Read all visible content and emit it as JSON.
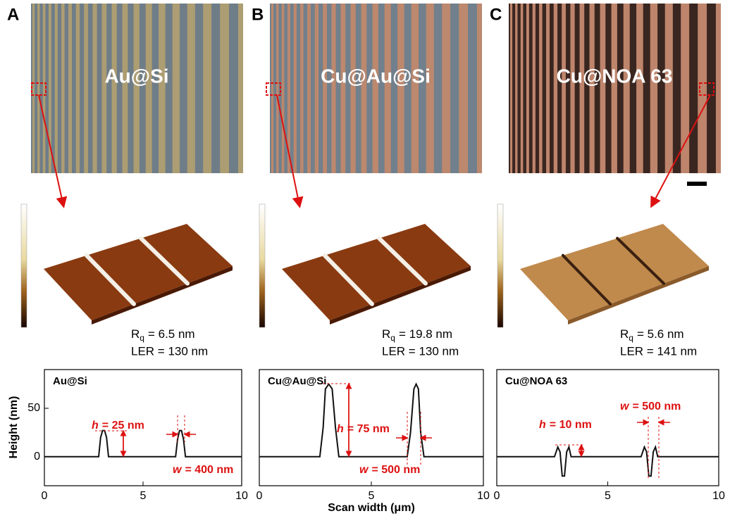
{
  "panels": [
    {
      "letter": "A",
      "image_label": "Au@Si",
      "roughness": {
        "symbol": "R",
        "subscript": "q",
        "text": "= 6.5 nm"
      },
      "ler": "LER = 130 nm"
    },
    {
      "letter": "B",
      "image_label": "Cu@Au@Si",
      "roughness": {
        "symbol": "R",
        "subscript": "q",
        "text": "= 19.8 nm"
      },
      "ler": "LER = 130 nm"
    },
    {
      "letter": "C",
      "image_label": "Cu@NOA 63",
      "roughness": {
        "symbol": "R",
        "subscript": "q",
        "text": "= 5.6 nm"
      },
      "ler": "LER = 141 nm"
    }
  ],
  "chart_data": [
    {
      "type": "line",
      "title": "Au@Si",
      "ylabel": "Height (nm)",
      "xlim": [
        0,
        10
      ],
      "xticks": [
        0,
        5,
        10
      ],
      "ylim": [
        -30,
        90
      ],
      "yticks": [
        0,
        50
      ],
      "x": [
        0,
        1,
        2,
        2.75,
        2.85,
        2.95,
        3.05,
        3.15,
        3.25,
        4,
        5,
        6,
        6.65,
        6.75,
        6.85,
        6.95,
        7.05,
        7.15,
        8,
        9,
        10
      ],
      "series": [
        {
          "color": "#111111",
          "values": [
            0,
            0,
            0,
            0,
            20,
            27,
            27,
            20,
            0,
            0,
            0,
            0,
            0,
            18,
            27,
            27,
            18,
            0,
            0,
            0,
            0
          ]
        }
      ],
      "annotations": [
        {
          "symbol": "h",
          "text": "= 25 nm"
        },
        {
          "symbol": "w",
          "text": "= 400 nm"
        }
      ]
    },
    {
      "type": "line",
      "title": "Cu@Au@Si",
      "xlabel": "Scan width (μm)",
      "xlim": [
        0,
        10
      ],
      "xticks": [
        0,
        5,
        10
      ],
      "ylim": [
        -30,
        90
      ],
      "x": [
        0,
        1,
        2,
        2.7,
        2.85,
        2.95,
        3.1,
        3.25,
        3.4,
        3.55,
        4,
        5,
        6,
        6.6,
        6.75,
        6.9,
        7.0,
        7.1,
        7.2,
        7.35,
        8,
        9,
        10
      ],
      "series": [
        {
          "color": "#111111",
          "values": [
            0,
            0,
            0,
            0,
            30,
            70,
            75,
            70,
            30,
            0,
            0,
            0,
            0,
            0,
            25,
            70,
            75,
            70,
            25,
            0,
            0,
            0,
            0
          ]
        }
      ],
      "annotations": [
        {
          "symbol": "h",
          "text": "= 75 nm"
        },
        {
          "symbol": "w",
          "text": "= 500 nm"
        }
      ]
    },
    {
      "type": "line",
      "title": "Cu@NOA 63",
      "xlim": [
        0,
        10
      ],
      "xticks": [
        0,
        5,
        10
      ],
      "ylim": [
        -30,
        90
      ],
      "x": [
        0,
        1,
        2,
        2.6,
        2.75,
        2.85,
        2.95,
        3.05,
        3.15,
        3.25,
        3.35,
        3.5,
        4,
        5,
        6,
        6.5,
        6.65,
        6.75,
        6.85,
        6.95,
        7.05,
        7.15,
        7.25,
        7.4,
        8,
        9,
        10
      ],
      "series": [
        {
          "color": "#111111",
          "values": [
            0,
            0,
            0,
            0,
            10,
            5,
            -20,
            -20,
            5,
            10,
            0,
            0,
            0,
            0,
            0,
            0,
            10,
            5,
            -20,
            -20,
            5,
            10,
            0,
            0,
            0,
            0,
            0
          ]
        }
      ],
      "annotations": [
        {
          "symbol": "h",
          "text": "= 10 nm"
        },
        {
          "symbol": "w",
          "text": "= 500 nm"
        }
      ]
    }
  ]
}
